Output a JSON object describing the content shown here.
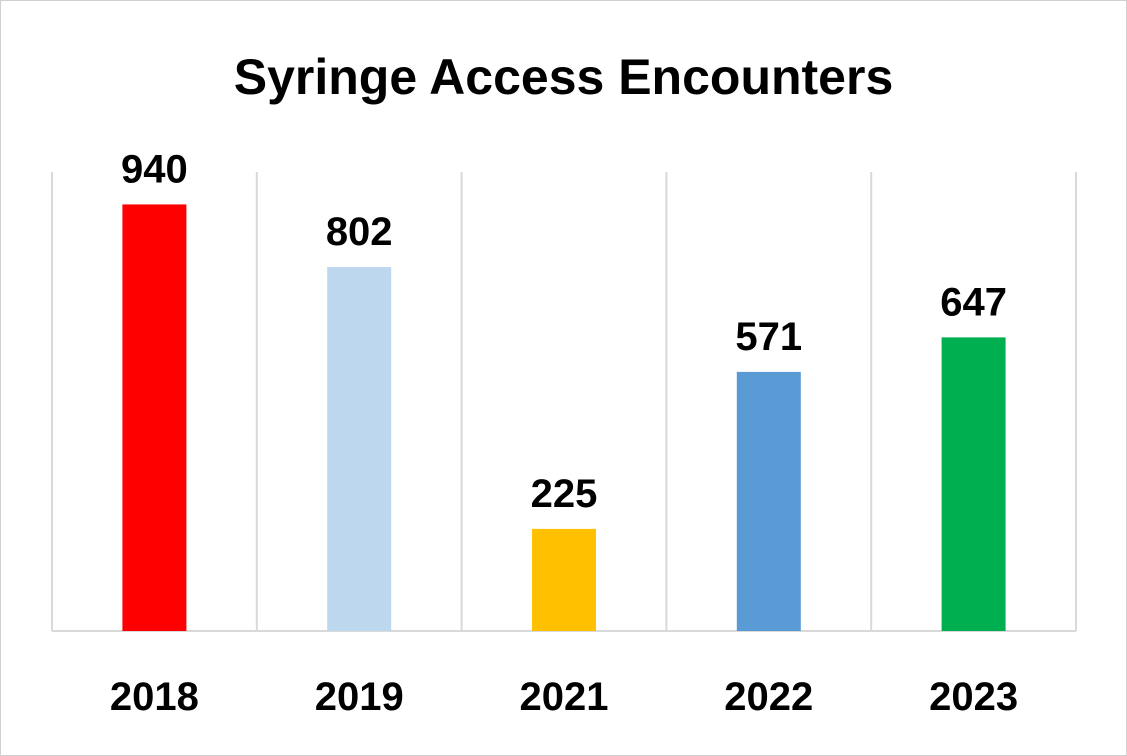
{
  "chart_data": {
    "type": "bar",
    "title": "Syringe Access Encounters",
    "categories": [
      "2018",
      "2019",
      "2021",
      "2022",
      "2023"
    ],
    "values": [
      940,
      802,
      225,
      571,
      647
    ],
    "colors": [
      "#ff0000",
      "#bdd7ee",
      "#ffc000",
      "#5b9bd5",
      "#00b050"
    ],
    "ylim": [
      0,
      1000
    ],
    "grid": "vertical-category-separators",
    "legend": "none",
    "data_labels": true,
    "xlabel": "",
    "ylabel": ""
  }
}
